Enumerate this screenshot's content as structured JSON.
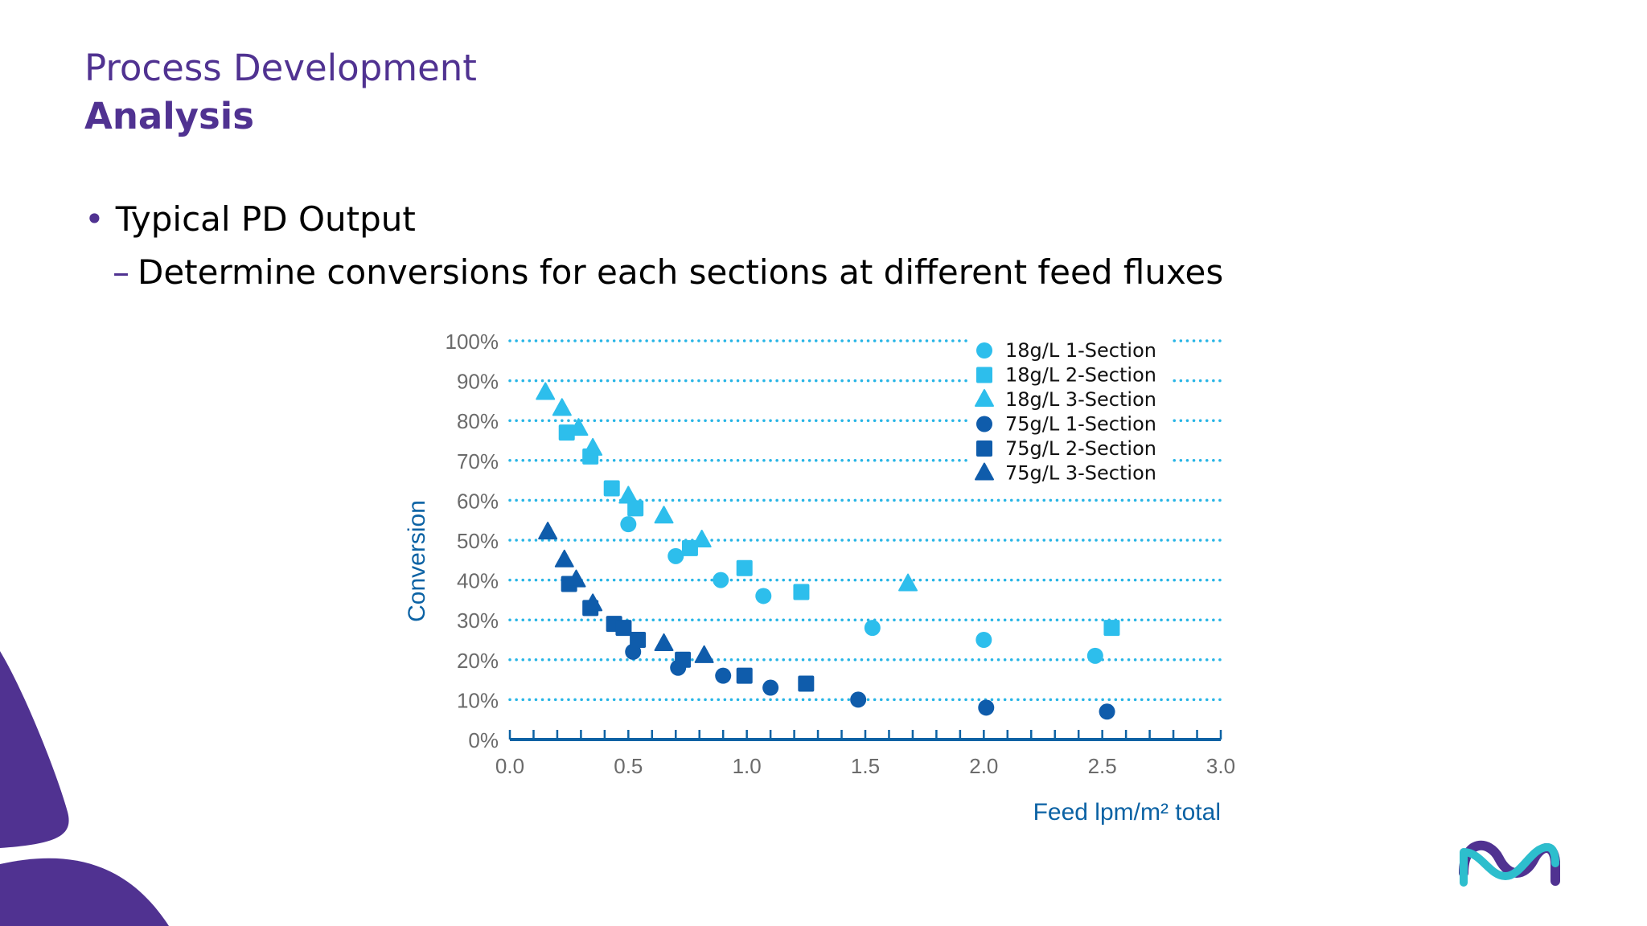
{
  "slide": {
    "title": "Process Development",
    "subtitle": "Analysis",
    "bullet_marker": "•",
    "bullet": "Typical PD Output",
    "sub_bullet_marker": "–",
    "sub_bullet": "Determine conversions for each sections at different feed fluxes"
  },
  "colors": {
    "brand_purple": "#503291",
    "light_blue": "#2dbeec",
    "dark_blue": "#0f5cab",
    "axis_blue": "#0b62a4",
    "grid_dot": "#27b5e6",
    "logo_teal": "#2dbecd",
    "logo_purple": "#503291"
  },
  "logo": {
    "icon": "brand-logo-icon"
  },
  "chart_data": {
    "type": "scatter",
    "title": "",
    "xlabel": "Feed lpm/m² total",
    "ylabel": "Conversion",
    "xlim": [
      0,
      3
    ],
    "ylim": [
      0,
      100
    ],
    "x_ticks": [
      "0.0",
      "0.5",
      "1.0",
      "1.5",
      "2.0",
      "2.5",
      "3.0"
    ],
    "y_ticks": [
      "0%",
      "10%",
      "20%",
      "30%",
      "40%",
      "50%",
      "60%",
      "70%",
      "80%",
      "90%",
      "100%"
    ],
    "grid": "horizontal dotted",
    "legend_position": "top-right",
    "series": [
      {
        "name": "18g/L 1-Section",
        "marker": "circle",
        "color": "#2dbeec",
        "points": [
          [
            0.5,
            54
          ],
          [
            0.7,
            46
          ],
          [
            0.89,
            40
          ],
          [
            1.07,
            36
          ],
          [
            1.53,
            28
          ],
          [
            2.0,
            25
          ],
          [
            2.47,
            21
          ]
        ]
      },
      {
        "name": "18g/L 2-Section",
        "marker": "square",
        "color": "#2dbeec",
        "points": [
          [
            0.24,
            77
          ],
          [
            0.34,
            71
          ],
          [
            0.43,
            63
          ],
          [
            0.53,
            58
          ],
          [
            0.76,
            48
          ],
          [
            0.99,
            43
          ],
          [
            1.23,
            37
          ],
          [
            2.54,
            28
          ]
        ]
      },
      {
        "name": "18g/L 3-Section",
        "marker": "triangle",
        "color": "#2dbeec",
        "points": [
          [
            0.15,
            87
          ],
          [
            0.22,
            83
          ],
          [
            0.29,
            78
          ],
          [
            0.35,
            73
          ],
          [
            0.5,
            61
          ],
          [
            0.65,
            56
          ],
          [
            0.81,
            50
          ],
          [
            1.68,
            39
          ]
        ]
      },
      {
        "name": "75g/L 1-Section",
        "marker": "circle",
        "color": "#0f5cab",
        "points": [
          [
            0.52,
            22
          ],
          [
            0.71,
            18
          ],
          [
            0.9,
            16
          ],
          [
            1.1,
            13
          ],
          [
            1.47,
            10
          ],
          [
            2.01,
            8
          ],
          [
            2.52,
            7
          ]
        ]
      },
      {
        "name": "75g/L 2-Section",
        "marker": "square",
        "color": "#0f5cab",
        "points": [
          [
            0.25,
            39
          ],
          [
            0.34,
            33
          ],
          [
            0.44,
            29
          ],
          [
            0.48,
            28
          ],
          [
            0.54,
            25
          ],
          [
            0.73,
            20
          ],
          [
            0.99,
            16
          ],
          [
            1.25,
            14
          ]
        ]
      },
      {
        "name": "75g/L 3-Section",
        "marker": "triangle",
        "color": "#0f5cab",
        "points": [
          [
            0.16,
            52
          ],
          [
            0.23,
            45
          ],
          [
            0.28,
            40
          ],
          [
            0.35,
            34
          ],
          [
            0.65,
            24
          ],
          [
            0.82,
            21
          ]
        ]
      }
    ]
  }
}
